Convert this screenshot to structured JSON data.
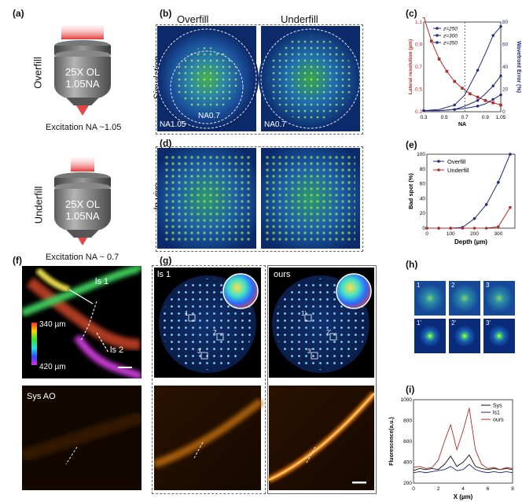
{
  "panels": {
    "a": "(a)",
    "b": "(b)",
    "c": "(c)",
    "d": "(d)",
    "e": "(e)",
    "f": "(f)",
    "g": "(g)",
    "h": "(h)",
    "i": "(i)"
  },
  "objective": {
    "side_overfill": "Overfill",
    "side_underfill": "Underfill",
    "label_line1": "25X OL",
    "label_line2": "1.05NA",
    "excitation_overfill": "Excitation NA ~1.05",
    "excitation_underfill": "Excitation NA ~ 0.7"
  },
  "panel_b": {
    "col_overfill": "Overfill",
    "col_underfill": "Underfill",
    "row_label": "Simulation",
    "na_outer": "NA1.05",
    "na_inner": "NA0.7",
    "na_under": "NA0.7"
  },
  "panel_d": {
    "row_label": "In vivo"
  },
  "panel_f": {
    "ls1": "ls 1",
    "ls2": "ls 2",
    "depth_top": "340 µm",
    "depth_bottom": "420 µm",
    "bottom_label": "Sys AO"
  },
  "panel_g": {
    "left_label": "ls 1",
    "right_label": "ours",
    "roi": [
      "1",
      "2",
      "3"
    ],
    "roi_prime": [
      "1'",
      "2'",
      "3'"
    ]
  },
  "panel_h": {
    "top": [
      "1",
      "2",
      "3"
    ],
    "bottom": [
      "1'",
      "2'",
      "3'"
    ]
  },
  "colors": {
    "navy": "#1f2a7a",
    "red": "#b22b2b",
    "black": "#111111"
  },
  "chart_data": [
    {
      "id": "c",
      "type": "line",
      "xlabel": "NA",
      "ylabel": "Lateral resolution (µm)",
      "ylabel_right": "Wavefront Error (%)",
      "xlim": [
        0.3,
        1.05
      ],
      "ylim": [
        0.3,
        1.1
      ],
      "ylim_right": [
        0,
        80
      ],
      "x_ticks": [
        "0.3",
        "0.5",
        "0.7",
        "0.9",
        "1.05"
      ],
      "y_ticks": [
        "0.3",
        "0.5",
        "0.7",
        "0.9",
        "1.1"
      ],
      "y_ticks_right": [
        "0",
        "20",
        "40",
        "60",
        "80"
      ],
      "vlines": [
        0.7,
        1.05
      ],
      "resolution": {
        "x": [
          0.3,
          0.375,
          0.45,
          0.525,
          0.6,
          0.675,
          0.75,
          0.825,
          0.9,
          0.975,
          1.05
        ],
        "y": [
          1.15,
          0.93,
          0.77,
          0.66,
          0.57,
          0.51,
          0.46,
          0.43,
          0.4,
          0.38,
          0.36
        ]
      },
      "series": [
        {
          "name": "z=250",
          "x": [
            0.3,
            0.45,
            0.6,
            0.7,
            0.825,
            0.9,
            0.975,
            1.05
          ],
          "y": [
            1,
            1,
            2,
            3,
            5,
            7,
            11,
            15
          ]
        },
        {
          "name": "z=300",
          "x": [
            0.3,
            0.45,
            0.6,
            0.7,
            0.825,
            0.9,
            0.975,
            1.05
          ],
          "y": [
            1,
            1,
            2,
            5,
            10,
            16,
            23,
            32
          ]
        },
        {
          "name": "z=350",
          "x": [
            0.3,
            0.45,
            0.6,
            0.7,
            0.825,
            0.9,
            0.975,
            1.05
          ],
          "y": [
            1,
            2,
            6,
            15,
            37,
            52,
            68,
            76
          ]
        }
      ]
    },
    {
      "id": "e",
      "type": "line",
      "xlabel": "Depth (µm)",
      "ylabel": "Bad spot (%)",
      "xlim": [
        0,
        370
      ],
      "ylim": [
        0,
        100
      ],
      "x_ticks": [
        0,
        100,
        200,
        300
      ],
      "y_ticks": [
        0,
        20,
        40,
        60,
        80,
        100
      ],
      "series": [
        {
          "name": "Overfill",
          "x": [
            0,
            50,
            100,
            150,
            200,
            250,
            300,
            350
          ],
          "y": [
            0,
            0,
            0,
            1,
            13,
            32,
            62,
            100
          ]
        },
        {
          "name": "Underfill",
          "x": [
            0,
            50,
            100,
            150,
            200,
            250,
            300,
            350
          ],
          "y": [
            0,
            0,
            0,
            0,
            0,
            0,
            2,
            28
          ]
        }
      ]
    },
    {
      "id": "i",
      "type": "line",
      "xlabel": "X (µm)",
      "ylabel": "Fluorescence(a.u.)",
      "xlim": [
        0,
        8
      ],
      "ylim": [
        200,
        1000
      ],
      "x_ticks": [
        0,
        2,
        4,
        6,
        8
      ],
      "y_ticks": [
        200,
        400,
        600,
        800,
        1000
      ],
      "series": [
        {
          "name": "Sys",
          "x": [
            0,
            0.5,
            1,
            1.5,
            2,
            2.5,
            3,
            3.5,
            4,
            4.5,
            5,
            5.5,
            6,
            6.5,
            7,
            7.5,
            8
          ],
          "y": [
            320,
            340,
            330,
            340,
            330,
            380,
            460,
            360,
            400,
            470,
            360,
            340,
            330,
            340,
            330,
            340,
            330
          ]
        },
        {
          "name": "ls1",
          "x": [
            0,
            0.5,
            1,
            1.5,
            2,
            2.5,
            3,
            3.5,
            4,
            4.5,
            5,
            5.5,
            6,
            6.5,
            7,
            7.5,
            8
          ],
          "y": [
            300,
            310,
            300,
            310,
            320,
            330,
            360,
            320,
            330,
            380,
            330,
            310,
            300,
            310,
            300,
            310,
            300
          ]
        },
        {
          "name": "ours",
          "x": [
            0,
            0.5,
            1,
            1.5,
            2,
            2.5,
            3,
            3.5,
            4,
            4.5,
            5,
            5.5,
            6,
            6.5,
            7,
            7.5,
            8
          ],
          "y": [
            350,
            360,
            340,
            350,
            420,
            600,
            760,
            520,
            700,
            920,
            520,
            380,
            340,
            350,
            330,
            350,
            340
          ]
        }
      ]
    }
  ]
}
